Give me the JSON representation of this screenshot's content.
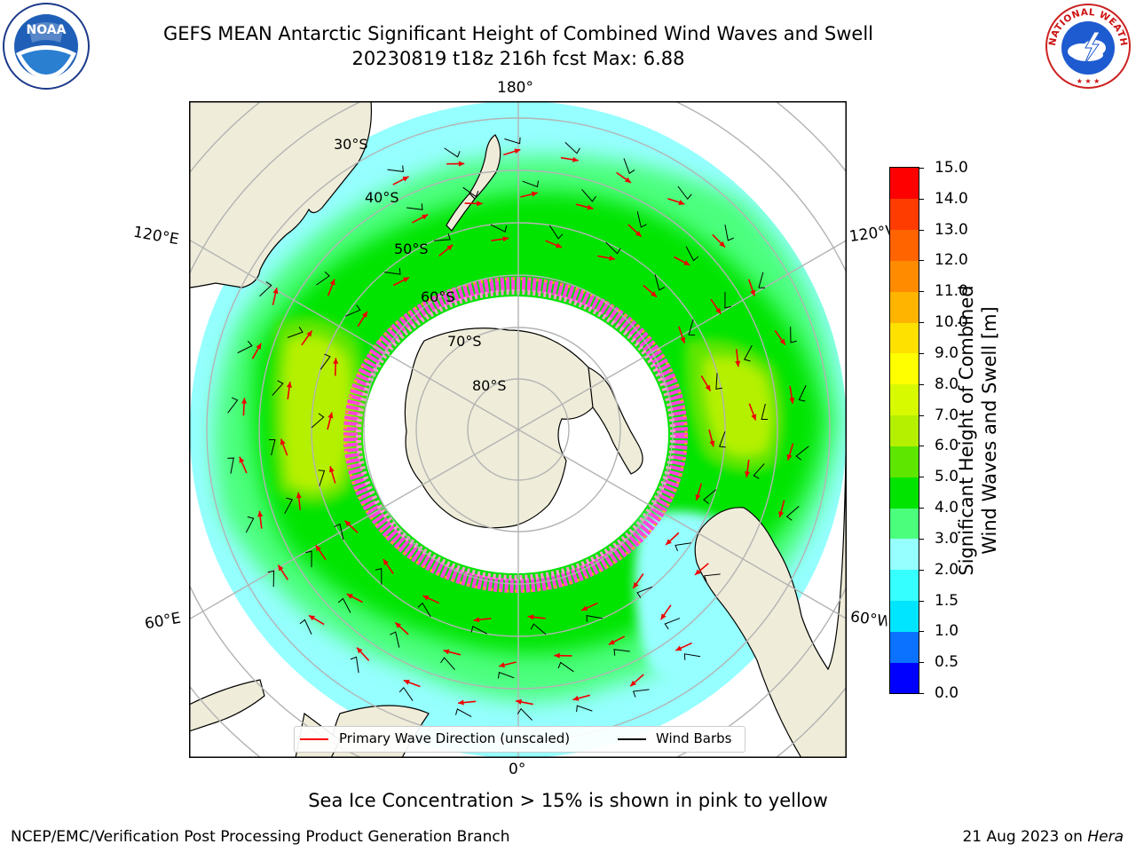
{
  "title": {
    "line1": "GEFS MEAN Antarctic Significant Height of Combined Wind Waves and Swell",
    "line2": "20230819 t18z 216h fcst   Max: 6.88"
  },
  "map": {
    "longitude_labels": {
      "top": "180°",
      "bottom": "0°",
      "upper_left": "120°E",
      "lower_left": "60°E",
      "upper_right": "120°W",
      "lower_right": "60°W"
    },
    "latitude_labels": [
      "30°S",
      "40°S",
      "50°S",
      "60°S",
      "70°S",
      "80°S"
    ]
  },
  "colorbar": {
    "title_line1": "Significant Height of Combined",
    "title_line2": "Wind Waves and Swell [m]",
    "ticks": [
      "0.0",
      "0.5",
      "1.0",
      "1.5",
      "2.0",
      "3.0",
      "4.0",
      "5.0",
      "6.0",
      "7.0",
      "8.0",
      "9.0",
      "10.0",
      "11.0",
      "12.0",
      "13.0",
      "14.0",
      "15.0"
    ],
    "colors": [
      "#0000ff",
      "#0a72ff",
      "#00e5ff",
      "#36ffff",
      "#96ffff",
      "#4bff7d",
      "#00e400",
      "#5ee600",
      "#b4f000",
      "#d8fa00",
      "#ffff00",
      "#ffe100",
      "#ffb400",
      "#ff8c00",
      "#ff6400",
      "#ff3c00",
      "#ff0000"
    ]
  },
  "legend": {
    "wave_label": "Primary Wave Direction (unscaled)",
    "wind_label": "Wind Barbs"
  },
  "logos": {
    "noaa_text": "NOAA",
    "nws_text": "NATIONAL WEATHER SERVICE"
  },
  "footer": {
    "note": "Sea Ice Concentration > 15% is shown in pink to yellow",
    "left": "NCEP/EMC/Verification Post Processing Product Generation Branch",
    "right_date": "21 Aug 2023 on ",
    "right_machine": "Hera"
  }
}
